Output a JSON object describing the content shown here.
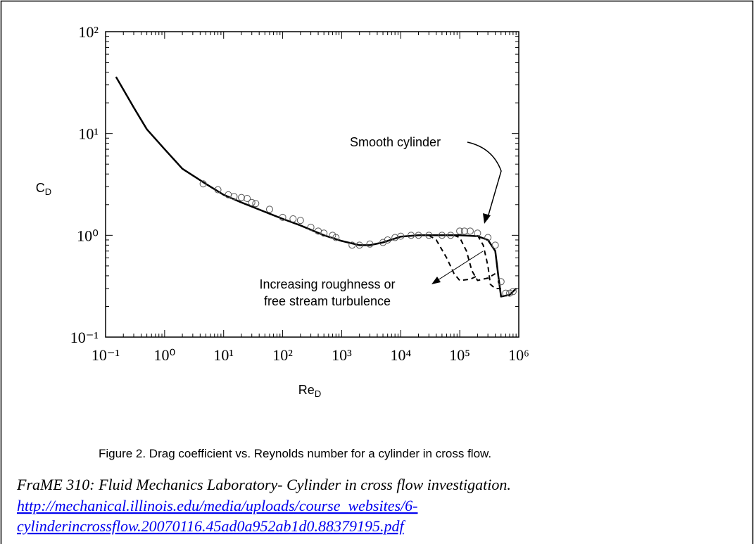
{
  "chart_data": {
    "type": "line",
    "log_x": true,
    "log_y": true,
    "xlim": [
      0.1,
      1000000
    ],
    "ylim": [
      0.1,
      100
    ],
    "xticks": [
      {
        "value": 0.1,
        "label": "10⁻¹"
      },
      {
        "value": 1,
        "label": "10⁰"
      },
      {
        "value": 10,
        "label": "10¹"
      },
      {
        "value": 100,
        "label": "10²"
      },
      {
        "value": 1000,
        "label": "10³"
      },
      {
        "value": 10000,
        "label": "10⁴"
      },
      {
        "value": 100000,
        "label": "10⁵"
      },
      {
        "value": 1000000,
        "label": "10⁶"
      }
    ],
    "yticks": [
      {
        "value": 0.1,
        "label": "10⁻¹"
      },
      {
        "value": 1,
        "label": "10⁰"
      },
      {
        "value": 10,
        "label": "10¹"
      },
      {
        "value": 100,
        "label": "10²"
      }
    ],
    "x_label": {
      "text": "Re",
      "subscript": "D"
    },
    "y_label": {
      "text": "C",
      "subscript": "D"
    },
    "annotations": [
      "Smooth cylinder",
      "Increasing roughness or",
      "free stream turbulence"
    ],
    "series": [
      {
        "style": "solid",
        "color": "#000000",
        "x": [
          0.15,
          0.3,
          0.5,
          1,
          2,
          5,
          10,
          20,
          50,
          100,
          200,
          500,
          1000,
          2000,
          3000,
          5000,
          8000,
          10000,
          20000,
          50000,
          100000,
          200000,
          300000,
          400000,
          450000,
          500000,
          700000,
          900000
        ],
        "values": [
          36,
          18,
          11,
          7,
          4.5,
          3.2,
          2.5,
          2.1,
          1.7,
          1.45,
          1.25,
          1.0,
          0.88,
          0.8,
          0.8,
          0.85,
          0.93,
          0.97,
          1.0,
          1.0,
          1.0,
          0.98,
          0.9,
          0.7,
          0.4,
          0.25,
          0.26,
          0.3
        ]
      },
      {
        "style": "markers",
        "color": "#000000",
        "x": [
          4.5,
          8,
          12,
          15,
          20,
          25,
          30,
          35,
          60,
          100,
          150,
          200,
          300,
          400,
          500,
          700,
          800,
          1500,
          2000,
          3000,
          5000,
          6000,
          8000,
          10000,
          15000,
          20000,
          30000,
          50000,
          70000,
          100000,
          120000,
          150000,
          200000,
          300000,
          400000,
          500000,
          600000,
          700000,
          800000
        ],
        "values": [
          3.2,
          2.8,
          2.5,
          2.4,
          2.35,
          2.3,
          2.1,
          2.05,
          1.8,
          1.5,
          1.45,
          1.4,
          1.2,
          1.1,
          1.05,
          1.0,
          0.95,
          0.8,
          0.8,
          0.82,
          0.85,
          0.9,
          0.95,
          0.98,
          1.0,
          1.0,
          1.0,
          1.0,
          1.0,
          1.1,
          1.1,
          1.1,
          1.05,
          0.95,
          0.8,
          0.35,
          0.27,
          0.27,
          0.28
        ]
      },
      {
        "style": "dashed",
        "color": "#000000",
        "x": [
          30000,
          40000,
          60000,
          80000,
          100000,
          150000,
          200000
        ],
        "values": [
          1.0,
          0.9,
          0.6,
          0.42,
          0.36,
          0.37,
          0.4
        ]
      },
      {
        "style": "dashed",
        "color": "#000000",
        "x": [
          80000,
          100000,
          130000,
          160000,
          200000,
          300000,
          400000
        ],
        "values": [
          1.0,
          0.95,
          0.7,
          0.45,
          0.36,
          0.38,
          0.42
        ]
      },
      {
        "style": "dashed",
        "color": "#000000",
        "x": [
          200000,
          250000,
          300000,
          330000,
          400000,
          500000
        ],
        "values": [
          1.0,
          0.8,
          0.5,
          0.33,
          0.3,
          0.3
        ]
      }
    ]
  },
  "caption": "Figure 2.  Drag coefficient vs. Reynolds number for a cylinder in cross flow.",
  "citation": "FraME 310: Fluid Mechanics Laboratory- Cylinder in cross flow investigation.",
  "link_lines": [
    "http://mechanical.illinois.edu/media/uploads/course_websites/6-",
    "cylinderincrossflow.20070116.45ad0a952ab1d0.88379195.pdf"
  ]
}
